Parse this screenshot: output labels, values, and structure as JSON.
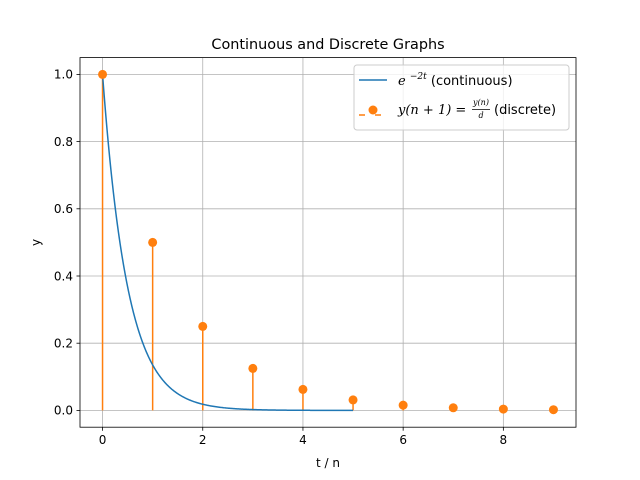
{
  "chart_data": {
    "type": "line",
    "title": "Continuous and Discrete Graphs",
    "xlabel": "t / n",
    "ylabel": "y",
    "xlim": [
      -0.45,
      9.45
    ],
    "ylim": [
      -0.05,
      1.05
    ],
    "x_ticks": [
      0,
      2,
      4,
      6,
      8
    ],
    "x_tick_labels": [
      "0",
      "2",
      "4",
      "6",
      "8"
    ],
    "y_ticks": [
      0.0,
      0.2,
      0.4,
      0.6,
      0.8,
      1.0
    ],
    "y_tick_labels": [
      "0.0",
      "0.2",
      "0.4",
      "0.6",
      "0.8",
      "1.0"
    ],
    "grid": true,
    "legend_position": "top-right",
    "colors": {
      "continuous": "#1f77b4",
      "discrete": "#ff7f0e",
      "grid": "#b0b0b0"
    },
    "series": [
      {
        "kind": "line",
        "legend_label": {
          "base": "e",
          "exponent": "−2t",
          "suffix": " (continuous)"
        },
        "function": "exp(-2t)",
        "x_range": [
          0,
          5
        ]
      },
      {
        "kind": "stem",
        "legend_label": {
          "lhs": "y(n + 1) = ",
          "numerator": "y(n)",
          "denominator": "d",
          "suffix": " (discrete)"
        },
        "x": [
          0,
          1,
          2,
          3,
          4,
          5,
          6,
          7,
          8,
          9
        ],
        "y": [
          1.0,
          0.5,
          0.25,
          0.125,
          0.0625,
          0.03125,
          0.015625,
          0.0078125,
          0.00390625,
          0.001953125
        ]
      }
    ]
  }
}
